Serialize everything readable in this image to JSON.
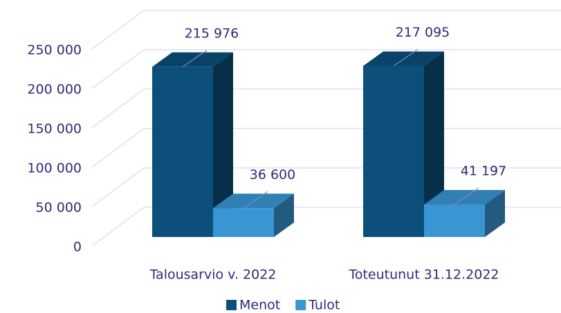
{
  "chart_data": {
    "type": "bar3d",
    "categories": [
      "Talousarvio v. 2022",
      "Toteutunut 31.12.2022"
    ],
    "series": [
      {
        "name": "Menot",
        "color": "#0b4f7a",
        "values": [
          215976,
          217095
        ],
        "value_labels": [
          "215 976",
          "217 095"
        ]
      },
      {
        "name": "Tulot",
        "color": "#3a96d3",
        "values": [
          36600,
          41197
        ],
        "value_labels": [
          "36 600",
          "41 197"
        ]
      }
    ],
    "ylim": [
      0,
      250000
    ],
    "yticks": [
      {
        "value": 0,
        "label": "0"
      },
      {
        "value": 50000,
        "label": "50 000"
      },
      {
        "value": 100000,
        "label": "100 000"
      },
      {
        "value": 150000,
        "label": "150 000"
      },
      {
        "value": 200000,
        "label": "200 000"
      },
      {
        "value": 250000,
        "label": "250 000"
      }
    ],
    "grid": true,
    "legend": "bottom"
  }
}
